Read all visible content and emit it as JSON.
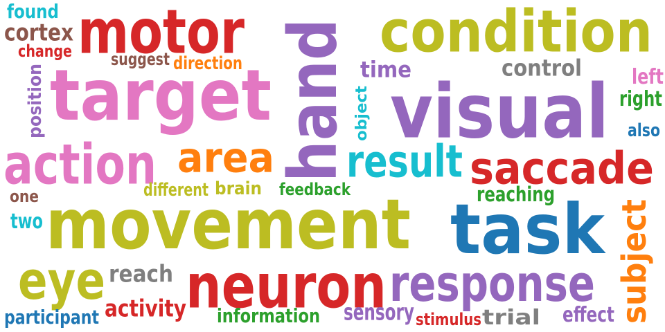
{
  "palette": {
    "olive": "#bcbd22",
    "red": "#d62728",
    "purple": "#9467bd",
    "pink": "#e377c2",
    "blue": "#1f77b4",
    "cyan": "#17becf",
    "orange": "#ff7f0e",
    "green": "#2ca02c",
    "gray": "#7f7f7f",
    "brown": "#8c564b"
  },
  "words": [
    {
      "text": "movement",
      "weight": 1.0,
      "color": "olive"
    },
    {
      "text": "visual",
      "weight": 0.8,
      "color": "purple"
    },
    {
      "text": "target",
      "weight": 0.78,
      "color": "pink"
    },
    {
      "text": "task",
      "weight": 0.78,
      "color": "blue"
    },
    {
      "text": "hand",
      "weight": 0.72,
      "color": "purple"
    },
    {
      "text": "condition",
      "weight": 0.68,
      "color": "olive"
    },
    {
      "text": "neuron",
      "weight": 0.68,
      "color": "red"
    },
    {
      "text": "motor",
      "weight": 0.66,
      "color": "red"
    },
    {
      "text": "action",
      "weight": 0.6,
      "color": "pink"
    },
    {
      "text": "response",
      "weight": 0.58,
      "color": "purple"
    },
    {
      "text": "eye",
      "weight": 0.56,
      "color": "olive"
    },
    {
      "text": "saccade",
      "weight": 0.5,
      "color": "red"
    },
    {
      "text": "result",
      "weight": 0.48,
      "color": "cyan"
    },
    {
      "text": "area",
      "weight": 0.48,
      "color": "orange"
    },
    {
      "text": "subject",
      "weight": 0.44,
      "color": "orange"
    },
    {
      "text": "activity",
      "weight": 0.3,
      "color": "red"
    },
    {
      "text": "reach",
      "weight": 0.3,
      "color": "gray"
    },
    {
      "text": "control",
      "weight": 0.28,
      "color": "gray"
    },
    {
      "text": "time",
      "weight": 0.28,
      "color": "purple"
    },
    {
      "text": "cortex",
      "weight": 0.27,
      "color": "brown"
    },
    {
      "text": "effect",
      "weight": 0.25,
      "color": "purple"
    },
    {
      "text": "sensory",
      "weight": 0.25,
      "color": "purple"
    },
    {
      "text": "participant",
      "weight": 0.24,
      "color": "blue"
    },
    {
      "text": "information",
      "weight": 0.24,
      "color": "green"
    },
    {
      "text": "reaching",
      "weight": 0.24,
      "color": "green"
    },
    {
      "text": "trial",
      "weight": 0.24,
      "color": "gray"
    },
    {
      "text": "right",
      "weight": 0.24,
      "color": "green"
    },
    {
      "text": "left",
      "weight": 0.24,
      "color": "pink"
    },
    {
      "text": "found",
      "weight": 0.22,
      "color": "cyan"
    },
    {
      "text": "position",
      "weight": 0.22,
      "color": "purple"
    },
    {
      "text": "brain",
      "weight": 0.22,
      "color": "olive"
    },
    {
      "text": "object",
      "weight": 0.21,
      "color": "cyan"
    },
    {
      "text": "stimulus",
      "weight": 0.21,
      "color": "red"
    },
    {
      "text": "direction",
      "weight": 0.2,
      "color": "orange"
    },
    {
      "text": "two",
      "weight": 0.2,
      "color": "cyan"
    },
    {
      "text": "different",
      "weight": 0.2,
      "color": "olive"
    },
    {
      "text": "feedback",
      "weight": 0.2,
      "color": "green"
    },
    {
      "text": "suggest",
      "weight": 0.19,
      "color": "brown"
    },
    {
      "text": "change",
      "weight": 0.19,
      "color": "red"
    },
    {
      "text": "also",
      "weight": 0.19,
      "color": "blue"
    },
    {
      "text": "one",
      "weight": 0.19,
      "color": "brown"
    }
  ]
}
